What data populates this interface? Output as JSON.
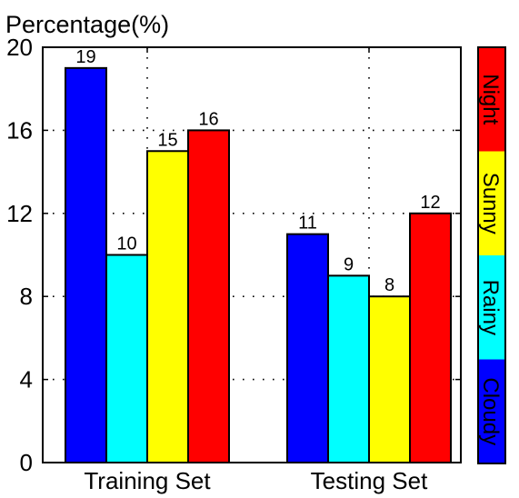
{
  "chart_data": {
    "type": "bar",
    "ylabel": "Percentage(%)",
    "categories": [
      "Training Set",
      "Testing Set"
    ],
    "ylim": [
      0,
      20
    ],
    "yticks": [
      "0",
      "4",
      "8",
      "12",
      "16",
      "20"
    ],
    "grid": true,
    "legend_position": "right",
    "series": [
      {
        "name": "Cloudy",
        "color": "#0000ff",
        "values": [
          19,
          11
        ],
        "labels": [
          "19",
          "11"
        ]
      },
      {
        "name": "Rainy",
        "color": "#00ffff",
        "values": [
          10,
          9
        ],
        "labels": [
          "10",
          "9"
        ]
      },
      {
        "name": "Sunny",
        "color": "#ffff00",
        "values": [
          15,
          8
        ],
        "labels": [
          "15",
          "8"
        ]
      },
      {
        "name": "Night",
        "color": "#ff0000",
        "values": [
          16,
          12
        ],
        "labels": [
          "16",
          "12"
        ]
      }
    ]
  }
}
